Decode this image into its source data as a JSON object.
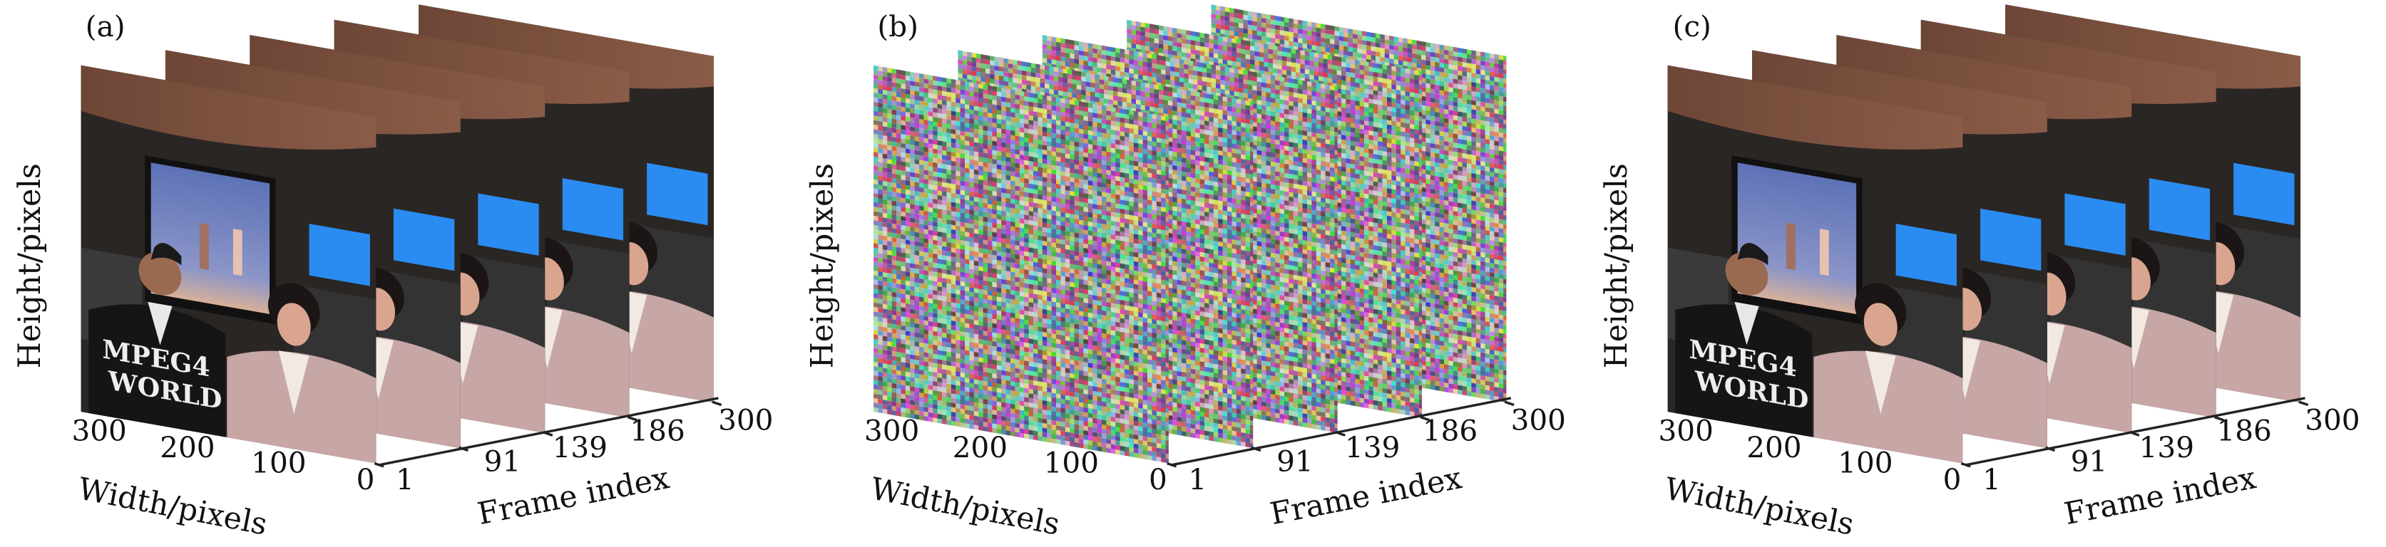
{
  "panels": [
    {
      "label": "(a)",
      "content": "video",
      "height_label": "Height/pixels",
      "width_label": "Width/pixels",
      "frame_label": "Frame index",
      "width_ticks": [
        "300",
        "200",
        "100",
        "0"
      ],
      "frame_ticks": [
        "1",
        "91",
        "139",
        "186",
        "300"
      ],
      "overlay_text": [
        "MPEG4",
        "WORLD"
      ]
    },
    {
      "label": "(b)",
      "content": "noise",
      "height_label": "Height/pixels",
      "width_label": "Width/pixels",
      "frame_label": "Frame index",
      "width_ticks": [
        "300",
        "200",
        "100",
        "0"
      ],
      "frame_ticks": [
        "1",
        "91",
        "139",
        "186",
        "300"
      ]
    },
    {
      "label": "(c)",
      "content": "video",
      "height_label": "Height/pixels",
      "width_label": "Width/pixels",
      "frame_label": "Frame index",
      "width_ticks": [
        "300",
        "200",
        "100",
        "0"
      ],
      "frame_ticks": [
        "1",
        "91",
        "139",
        "186",
        "300"
      ],
      "overlay_text": [
        "MPEG4",
        "WORLD"
      ]
    }
  ],
  "colors": {
    "frame_top": "#7a5040",
    "background": "#2a2624",
    "screen_blue": "#2a8cf0",
    "jacket_pink": "#c7a6a6"
  }
}
